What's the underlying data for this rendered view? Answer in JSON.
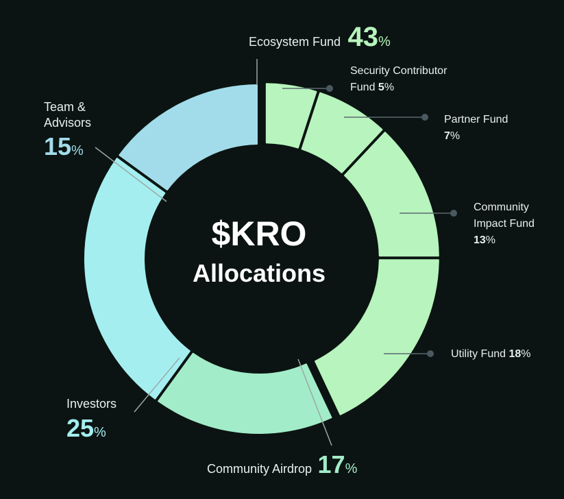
{
  "center": {
    "line1": "$KRO",
    "line2": "Allocations"
  },
  "chart_data": {
    "type": "pie",
    "title": "$KRO Allocations",
    "unit": "%",
    "slices": [
      {
        "name": "Security Contributor Fund",
        "value": 5,
        "color": "#b8f4bd",
        "group": "Ecosystem Fund"
      },
      {
        "name": "Partner Fund",
        "value": 7,
        "color": "#b8f4bd",
        "group": "Ecosystem Fund"
      },
      {
        "name": "Community Impact Fund",
        "value": 13,
        "color": "#b8f4bd",
        "group": "Ecosystem Fund"
      },
      {
        "name": "Utility Fund",
        "value": 18,
        "color": "#b8f4bd",
        "group": "Ecosystem Fund"
      },
      {
        "name": "Community Airdrop",
        "value": 17,
        "color": "#a3ecc9"
      },
      {
        "name": "Investors",
        "value": 25,
        "color": "#a4eef0"
      },
      {
        "name": "Team & Advisors",
        "value": 15,
        "color": "#a2dcea"
      }
    ],
    "groups": [
      {
        "name": "Ecosystem Fund",
        "value": 43
      }
    ]
  },
  "labels": {
    "ecosystem": {
      "name": "Ecosystem Fund",
      "value": "43",
      "pct": "%"
    },
    "security": {
      "line1": "Security Contributor",
      "line2": "Fund",
      "value": "5",
      "pct": "%"
    },
    "partner": {
      "line1": "Partner Fund",
      "value": "7",
      "pct": "%"
    },
    "impact": {
      "line1": "Community",
      "line2": "Impact Fund",
      "value": "13",
      "pct": "%"
    },
    "utility": {
      "name": "Utility Fund",
      "value": "18",
      "pct": "%"
    },
    "airdrop": {
      "name": "Community Airdrop",
      "value": "17",
      "pct": "%"
    },
    "investors": {
      "name": "Investors",
      "value": "25",
      "pct": "%"
    },
    "team": {
      "line1": "Team &",
      "line2": "Advisors",
      "value": "15",
      "pct": "%"
    }
  },
  "colors": {
    "background": "#0b1412",
    "ecosystem_text": "#b8f4bd",
    "airdrop_text": "#a3ecc9",
    "investors_text": "#a4eef0",
    "team_text": "#a2dcea",
    "leader": "#8a9894",
    "dot": "#4a5860"
  }
}
